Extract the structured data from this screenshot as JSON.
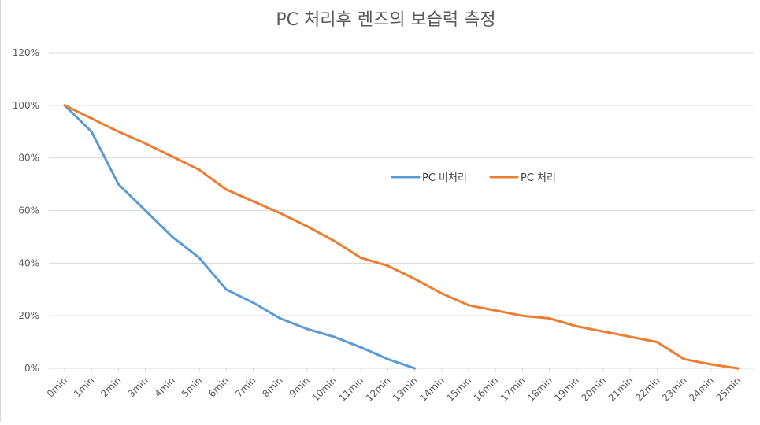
{
  "chart_data": {
    "type": "line",
    "title": "PC 처리후 렌즈의 보습력 측정",
    "xlabel": "",
    "ylabel": "",
    "categories": [
      "0min",
      "1min",
      "2min",
      "3min",
      "4min",
      "5min",
      "6min",
      "7min",
      "8min",
      "9min",
      "10min",
      "11min",
      "12min",
      "13min",
      "14min",
      "15min",
      "16min",
      "17min",
      "18min",
      "19min",
      "20min",
      "21min",
      "22min",
      "23min",
      "24min",
      "25min"
    ],
    "ylim": [
      0,
      120
    ],
    "yticks": [
      "0%",
      "20%",
      "40%",
      "60%",
      "80%",
      "100%",
      "120%"
    ],
    "grid": true,
    "legend_position": "center-right",
    "series": [
      {
        "name": "PC 비처리",
        "color": "#5B9BD5",
        "values": [
          100,
          90,
          70,
          60,
          50,
          42,
          30,
          25,
          19,
          15,
          12,
          8,
          3.5,
          0,
          null,
          null,
          null,
          null,
          null,
          null,
          null,
          null,
          null,
          null,
          null,
          null
        ]
      },
      {
        "name": "PC 처리",
        "color": "#ED7D31",
        "values": [
          100,
          95,
          90,
          85.5,
          80.5,
          75.5,
          68,
          63.5,
          59,
          54,
          48.5,
          42,
          39,
          34,
          28.5,
          24,
          22,
          20,
          19,
          16,
          14,
          12,
          10,
          3.5,
          1.5,
          0
        ]
      }
    ]
  }
}
